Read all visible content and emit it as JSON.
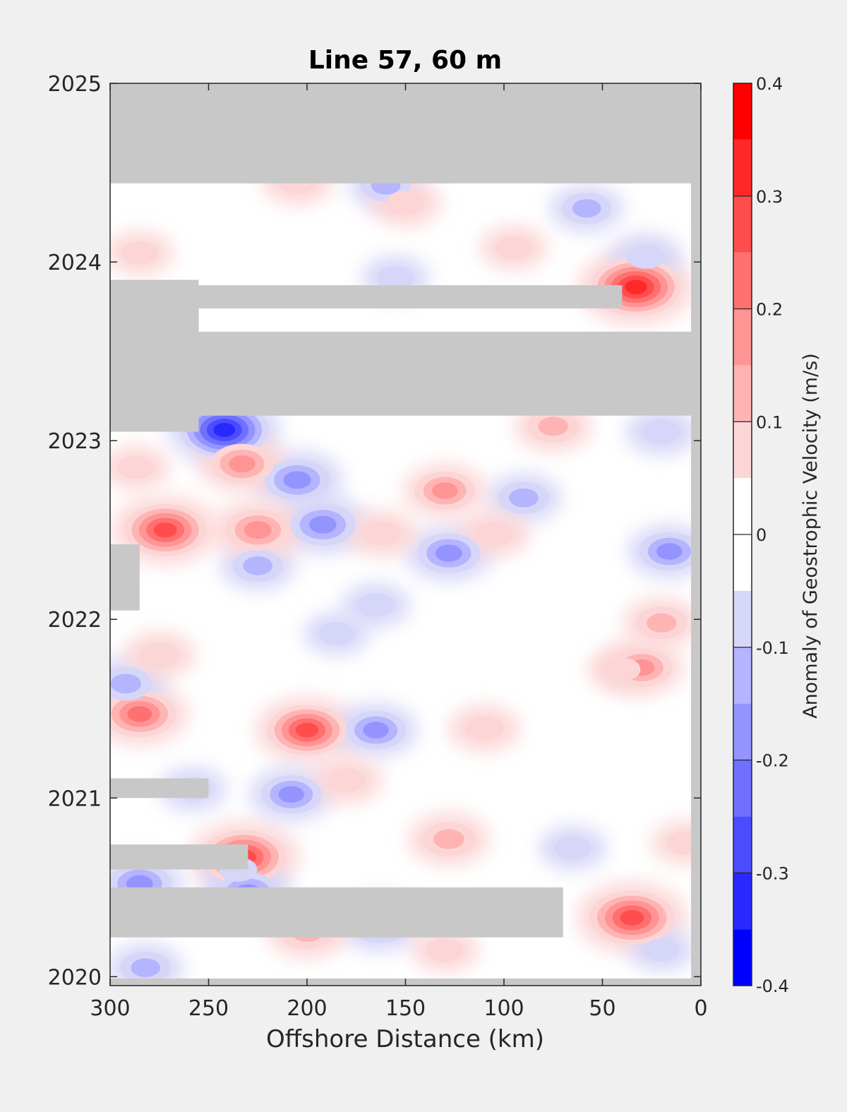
{
  "chart_data": {
    "type": "contour",
    "title": "Line 57, 60 m",
    "xlabel": "Offshore Distance (km)",
    "ylabel": "",
    "xlim": [
      300,
      0
    ],
    "ylim": [
      2019.95,
      2025
    ],
    "x_direction": "reversed",
    "x_ticks": [
      300,
      250,
      200,
      150,
      100,
      50,
      0
    ],
    "x_tick_labels": [
      "300",
      "250",
      "200",
      "150",
      "100",
      "50",
      "0"
    ],
    "y_ticks": [
      2020,
      2021,
      2022,
      2023,
      2024,
      2025
    ],
    "y_tick_labels": [
      "2020",
      "2021",
      "2022",
      "2023",
      "2024",
      "2025"
    ],
    "colorbar": {
      "label": "Anomaly of Geostrophic Velocity (m/s)",
      "levels": [
        -0.4,
        -0.35,
        -0.3,
        -0.25,
        -0.2,
        -0.15,
        -0.1,
        -0.05,
        0,
        0.05,
        0.1,
        0.15,
        0.2,
        0.25,
        0.3,
        0.35,
        0.4
      ],
      "colors": [
        "#0000ff",
        "#2828ff",
        "#4c4cff",
        "#7070ff",
        "#9494ff",
        "#b4b4ff",
        "#d6d6f8",
        "#ffffff",
        "#ffffff",
        "#fcd6d6",
        "#ffb4b4",
        "#ff9494",
        "#ff7070",
        "#ff4c4c",
        "#ff2828",
        "#ff0000"
      ],
      "tick_values": [
        0.4,
        0.3,
        0.2,
        0.1,
        0,
        -0.1,
        -0.2,
        -0.3,
        -0.4
      ],
      "tick_labels": [
        "0.4",
        "0.3",
        "0.2",
        "0.1",
        "0",
        "-0.1",
        "-0.2",
        "-0.3",
        "-0.4"
      ]
    },
    "no_data_color": "#c8c8c8",
    "no_data_regions": [
      {
        "x": [
          300,
          0
        ],
        "y": [
          2024.44,
          2025
        ]
      },
      {
        "x": [
          300,
          0
        ],
        "y": [
          2023.14,
          2023.61
        ]
      },
      {
        "x": [
          300,
          255
        ],
        "y": [
          2023.05,
          2023.9
        ]
      },
      {
        "x": [
          300,
          40
        ],
        "y": [
          2023.74,
          2023.87
        ]
      },
      {
        "x": [
          300,
          285
        ],
        "y": [
          2022.05,
          2022.42
        ]
      },
      {
        "x": [
          300,
          250
        ],
        "y": [
          2021,
          2021.11
        ]
      },
      {
        "x": [
          300,
          230
        ],
        "y": [
          2020.6,
          2020.74
        ]
      },
      {
        "x": [
          300,
          70
        ],
        "y": [
          2020.22,
          2020.5
        ]
      },
      {
        "x": [
          300,
          0
        ],
        "y": [
          2019.95,
          2019.99
        ]
      },
      {
        "x": [
          5,
          0
        ],
        "y": [
          2019.95,
          2025
        ]
      }
    ],
    "features": [
      {
        "x": 33,
        "y": 2023.86,
        "value": 0.35
      },
      {
        "x": 35,
        "y": 2020.33,
        "value": 0.32
      },
      {
        "x": 232,
        "y": 2020.67,
        "value": 0.32
      },
      {
        "x": 272,
        "y": 2022.5,
        "value": 0.3
      },
      {
        "x": 200,
        "y": 2021.38,
        "value": 0.28
      },
      {
        "x": 285,
        "y": 2021.47,
        "value": 0.25
      },
      {
        "x": 242,
        "y": 2023.06,
        "value": -0.33
      },
      {
        "x": 205,
        "y": 2022.78,
        "value": -0.22
      },
      {
        "x": 192,
        "y": 2022.53,
        "value": -0.22
      },
      {
        "x": 128,
        "y": 2022.37,
        "value": -0.2
      },
      {
        "x": 16,
        "y": 2022.38,
        "value": -0.18
      },
      {
        "x": 208,
        "y": 2021.02,
        "value": -0.18
      },
      {
        "x": 165,
        "y": 2021.38,
        "value": -0.18
      },
      {
        "x": 163,
        "y": 2020.3,
        "value": -0.2
      },
      {
        "x": 230,
        "y": 2020.47,
        "value": -0.2
      },
      {
        "x": 285,
        "y": 2020.52,
        "value": -0.2
      },
      {
        "x": 292,
        "y": 2021.64,
        "value": -0.16
      },
      {
        "x": 282,
        "y": 2020.05,
        "value": -0.14
      },
      {
        "x": 90,
        "y": 2022.68,
        "value": -0.14
      },
      {
        "x": 225,
        "y": 2022.3,
        "value": -0.14
      },
      {
        "x": 160,
        "y": 2024.43,
        "value": -0.14
      },
      {
        "x": 58,
        "y": 2024.3,
        "value": -0.13
      },
      {
        "x": 28,
        "y": 2024.03,
        "value": -0.12
      },
      {
        "x": 155,
        "y": 2023.91,
        "value": -0.1
      },
      {
        "x": 20,
        "y": 2023.05,
        "value": -0.12
      },
      {
        "x": 65,
        "y": 2020.72,
        "value": -0.1
      },
      {
        "x": 165,
        "y": 2022.08,
        "value": -0.1
      },
      {
        "x": 185,
        "y": 2021.92,
        "value": -0.09
      },
      {
        "x": 20,
        "y": 2020.15,
        "value": -0.09
      },
      {
        "x": 235,
        "y": 2020.6,
        "value": -0.12
      },
      {
        "x": 233,
        "y": 2022.87,
        "value": 0.2
      },
      {
        "x": 162,
        "y": 2022.48,
        "value": 0.12
      },
      {
        "x": 225,
        "y": 2022.5,
        "value": 0.22
      },
      {
        "x": 130,
        "y": 2022.72,
        "value": 0.18
      },
      {
        "x": 105,
        "y": 2022.48,
        "value": 0.12
      },
      {
        "x": 75,
        "y": 2023.08,
        "value": 0.15
      },
      {
        "x": 20,
        "y": 2021.98,
        "value": 0.15
      },
      {
        "x": 30,
        "y": 2021.73,
        "value": 0.18
      },
      {
        "x": 128,
        "y": 2020.77,
        "value": 0.17
      },
      {
        "x": 200,
        "y": 2020.25,
        "value": 0.17
      },
      {
        "x": 110,
        "y": 2021.39,
        "value": 0.12
      },
      {
        "x": 275,
        "y": 2021.8,
        "value": 0.12
      },
      {
        "x": 180,
        "y": 2021.1,
        "value": 0.12
      },
      {
        "x": 150,
        "y": 2024.33,
        "value": 0.12
      },
      {
        "x": 205,
        "y": 2024.45,
        "value": 0.12
      },
      {
        "x": 95,
        "y": 2024.08,
        "value": 0.1
      },
      {
        "x": 285,
        "y": 2024.05,
        "value": 0.1
      },
      {
        "x": 130,
        "y": 2020.15,
        "value": 0.1
      },
      {
        "x": 8,
        "y": 2020.75,
        "value": 0.1
      },
      {
        "x": 40,
        "y": 2021.72,
        "value": 0.1
      },
      {
        "x": 287,
        "y": 2022.85,
        "value": 0.1
      },
      {
        "x": 258,
        "y": 2021.05,
        "value": -0.1
      }
    ]
  }
}
